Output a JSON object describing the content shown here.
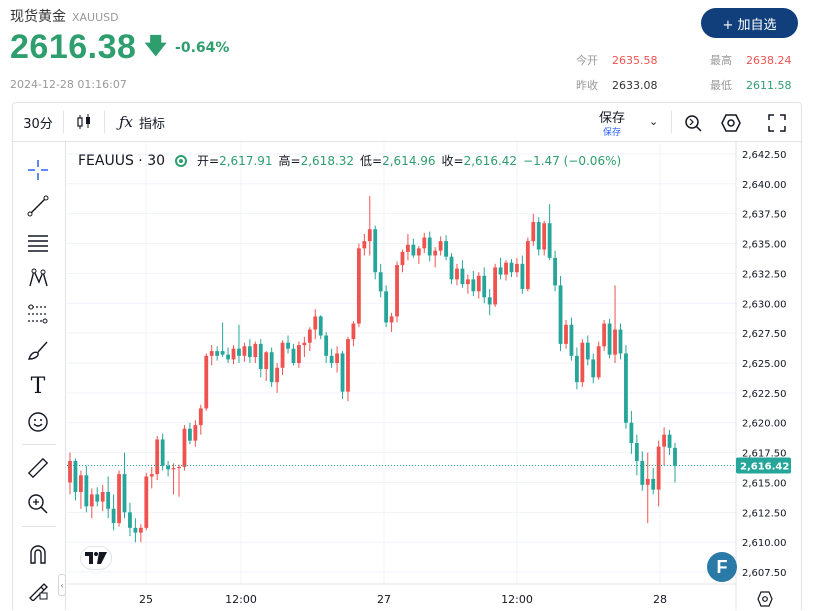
{
  "header": {
    "title": "现货黄金",
    "code": "XAUUSD",
    "price": "2616.38",
    "change_pct": "-0.64%",
    "datetime": "2024-12-28 01:16:07",
    "watch_button": "+ 加自选"
  },
  "stats": {
    "open_label": "今开",
    "open": "2635.58",
    "high_label": "最高",
    "high": "2638.24",
    "prev_label": "昨收",
    "prev": "2633.08",
    "low_label": "最低",
    "low": "2611.58"
  },
  "toolbar": {
    "interval": "30分",
    "indicators": "指标",
    "save": "保存",
    "save_sub": "保存"
  },
  "legend": {
    "symbol": "FEAUUS · 30",
    "open_label": "开=",
    "open": "2,617.91",
    "high_label": "高=",
    "high": "2,618.32",
    "low_label": "低=",
    "low": "2,614.96",
    "close_label": "收=",
    "close": "2,616.42",
    "change": "−1.47 (−0.06%)"
  },
  "colors": {
    "up": "#ef5350",
    "down": "#26a69a",
    "accent": "#103f7c",
    "price": "#2e9e6e"
  },
  "chart_data": {
    "type": "candlestick",
    "y_ticks": [
      "2,642.50",
      "2,640.00",
      "2,637.50",
      "2,635.00",
      "2,632.50",
      "2,630.00",
      "2,627.50",
      "2,625.00",
      "2,622.50",
      "2,620.00",
      "2,617.50",
      "2,615.00",
      "2,612.50",
      "2,610.00",
      "2,607.50"
    ],
    "x_ticks": [
      "25",
      "12:00",
      "27",
      "12:00",
      "28"
    ],
    "last_price": "2,616.42",
    "ylim": [
      2606.5,
      2643.5
    ],
    "candles": [
      [
        2615.0,
        2617.5,
        2614.0,
        2616.8
      ],
      [
        2616.8,
        2617.0,
        2613.5,
        2614.2
      ],
      [
        2614.2,
        2616.0,
        2612.8,
        2615.6
      ],
      [
        2615.6,
        2616.4,
        2612.5,
        2613.0
      ],
      [
        2613.0,
        2614.5,
        2612.0,
        2614.0
      ],
      [
        2614.0,
        2614.6,
        2613.0,
        2613.4
      ],
      [
        2613.4,
        2614.8,
        2612.6,
        2614.2
      ],
      [
        2614.2,
        2615.5,
        2612.0,
        2612.8
      ],
      [
        2612.8,
        2614.0,
        2611.0,
        2611.6
      ],
      [
        2611.6,
        2616.0,
        2611.3,
        2615.7
      ],
      [
        2615.7,
        2617.5,
        2612.0,
        2612.5
      ],
      [
        2612.5,
        2613.3,
        2610.5,
        2611.2
      ],
      [
        2611.2,
        2612.0,
        2610.0,
        2610.8
      ],
      [
        2610.8,
        2611.5,
        2610.0,
        2611.2
      ],
      [
        2611.2,
        2615.8,
        2611.0,
        2615.5
      ],
      [
        2615.5,
        2616.3,
        2614.5,
        2615.7
      ],
      [
        2615.7,
        2618.9,
        2615.2,
        2618.6
      ],
      [
        2618.6,
        2619.1,
        2616.0,
        2616.4
      ],
      [
        2616.4,
        2616.8,
        2615.5,
        2616.1
      ],
      [
        2616.1,
        2616.6,
        2614.0,
        2616.2
      ],
      [
        2616.2,
        2616.5,
        2613.8,
        2616.3
      ],
      [
        2616.3,
        2619.8,
        2616.0,
        2619.5
      ],
      [
        2619.5,
        2620.0,
        2618.2,
        2618.5
      ],
      [
        2618.5,
        2620.2,
        2618.0,
        2619.8
      ],
      [
        2619.8,
        2621.5,
        2619.0,
        2621.2
      ],
      [
        2621.2,
        2625.8,
        2621.0,
        2625.6
      ],
      [
        2625.6,
        2626.5,
        2624.8,
        2626.0
      ],
      [
        2626.0,
        2626.4,
        2625.2,
        2625.6
      ],
      [
        2626.0,
        2628.4,
        2625.5,
        2625.7
      ],
      [
        2625.7,
        2626.3,
        2625.0,
        2625.3
      ],
      [
        2625.3,
        2626.5,
        2624.9,
        2626.2
      ],
      [
        2626.2,
        2628.2,
        2625.0,
        2625.6
      ],
      [
        2625.6,
        2626.7,
        2625.1,
        2626.4
      ],
      [
        2626.4,
        2627.0,
        2625.0,
        2625.5
      ],
      [
        2625.5,
        2626.8,
        2625.0,
        2626.6
      ],
      [
        2626.6,
        2627.0,
        2623.8,
        2624.5
      ],
      [
        2624.5,
        2626.0,
        2623.5,
        2625.9
      ],
      [
        2625.9,
        2626.3,
        2623.0,
        2623.4
      ],
      [
        2623.4,
        2625.0,
        2622.5,
        2624.6
      ],
      [
        2624.6,
        2626.9,
        2624.0,
        2626.7
      ],
      [
        2626.7,
        2627.3,
        2625.8,
        2626.2
      ],
      [
        2626.2,
        2626.6,
        2624.8,
        2625.0
      ],
      [
        2625.0,
        2626.8,
        2624.6,
        2626.5
      ],
      [
        2626.5,
        2627.2,
        2625.5,
        2626.7
      ],
      [
        2626.7,
        2628.0,
        2626.0,
        2627.8
      ],
      [
        2627.8,
        2629.5,
        2627.0,
        2628.9
      ],
      [
        2628.9,
        2629.0,
        2627.0,
        2627.3
      ],
      [
        2627.3,
        2627.6,
        2625.0,
        2625.6
      ],
      [
        2625.6,
        2626.2,
        2624.6,
        2625.0
      ],
      [
        2625.0,
        2626.4,
        2624.2,
        2625.8
      ],
      [
        2625.8,
        2626.0,
        2622.0,
        2622.6
      ],
      [
        2622.6,
        2627.2,
        2621.8,
        2627.0
      ],
      [
        2627.0,
        2628.5,
        2626.4,
        2628.3
      ],
      [
        2628.3,
        2635.0,
        2628.0,
        2634.6
      ],
      [
        2634.6,
        2635.8,
        2634.0,
        2635.2
      ],
      [
        2635.2,
        2639.0,
        2634.0,
        2636.2
      ],
      [
        2636.2,
        2636.5,
        2632.0,
        2632.6
      ],
      [
        2632.6,
        2633.3,
        2630.5,
        2631.0
      ],
      [
        2631.0,
        2631.5,
        2628.0,
        2628.4
      ],
      [
        2628.4,
        2629.2,
        2627.6,
        2628.9
      ],
      [
        2628.9,
        2633.5,
        2628.4,
        2633.2
      ],
      [
        2633.2,
        2634.5,
        2632.6,
        2634.3
      ],
      [
        2634.3,
        2635.8,
        2633.6,
        2634.9
      ],
      [
        2634.9,
        2635.4,
        2633.8,
        2634.0
      ],
      [
        2634.0,
        2634.8,
        2633.3,
        2634.6
      ],
      [
        2634.6,
        2635.9,
        2634.2,
        2635.5
      ],
      [
        2635.5,
        2636.0,
        2633.5,
        2634.0
      ],
      [
        2634.0,
        2634.7,
        2633.0,
        2634.4
      ],
      [
        2634.4,
        2635.6,
        2634.0,
        2635.2
      ],
      [
        2635.2,
        2635.7,
        2633.6,
        2633.9
      ],
      [
        2633.9,
        2634.2,
        2631.6,
        2632.0
      ],
      [
        2632.0,
        2633.3,
        2631.5,
        2632.9
      ],
      [
        2632.9,
        2633.6,
        2631.3,
        2631.6
      ],
      [
        2631.6,
        2632.4,
        2630.8,
        2632.0
      ],
      [
        2632.0,
        2632.7,
        2630.6,
        2631.0
      ],
      [
        2631.0,
        2632.6,
        2630.4,
        2632.3
      ],
      [
        2632.3,
        2633.0,
        2630.0,
        2630.5
      ],
      [
        2630.5,
        2631.2,
        2629.0,
        2629.9
      ],
      [
        2629.9,
        2633.3,
        2629.7,
        2633.0
      ],
      [
        2633.0,
        2633.8,
        2632.0,
        2632.4
      ],
      [
        2632.4,
        2633.6,
        2631.9,
        2633.4
      ],
      [
        2633.4,
        2633.7,
        2632.2,
        2632.6
      ],
      [
        2632.6,
        2633.8,
        2632.2,
        2633.3
      ],
      [
        2633.3,
        2634.0,
        2630.8,
        2631.2
      ],
      [
        2631.2,
        2635.5,
        2631.0,
        2635.2
      ],
      [
        2635.2,
        2637.5,
        2634.8,
        2636.8
      ],
      [
        2636.8,
        2637.2,
        2634.0,
        2634.5
      ],
      [
        2634.5,
        2636.9,
        2634.0,
        2636.7
      ],
      [
        2636.7,
        2638.3,
        2633.6,
        2633.8
      ],
      [
        2633.8,
        2634.4,
        2631.0,
        2631.5
      ],
      [
        2631.5,
        2632.3,
        2626.0,
        2626.6
      ],
      [
        2626.6,
        2628.6,
        2626.2,
        2628.2
      ],
      [
        2628.2,
        2628.8,
        2625.2,
        2625.6
      ],
      [
        2625.6,
        2626.3,
        2622.8,
        2623.4
      ],
      [
        2623.4,
        2627.0,
        2623.0,
        2626.7
      ],
      [
        2626.7,
        2627.3,
        2624.8,
        2625.3
      ],
      [
        2625.3,
        2625.8,
        2623.3,
        2623.8
      ],
      [
        2623.8,
        2626.8,
        2623.6,
        2626.4
      ],
      [
        2626.4,
        2628.6,
        2626.0,
        2628.3
      ],
      [
        2628.3,
        2628.7,
        2625.4,
        2625.7
      ],
      [
        2625.7,
        2631.5,
        2625.0,
        2627.8
      ],
      [
        2627.8,
        2628.3,
        2625.3,
        2625.8
      ],
      [
        2625.8,
        2626.5,
        2619.5,
        2620.0
      ],
      [
        2620.0,
        2621.0,
        2617.4,
        2618.3
      ],
      [
        2618.3,
        2619.0,
        2615.6,
        2616.8
      ],
      [
        2616.8,
        2617.6,
        2614.3,
        2614.8
      ],
      [
        2614.8,
        2617.5,
        2611.6,
        2615.3
      ],
      [
        2615.3,
        2616.2,
        2614.0,
        2614.4
      ],
      [
        2614.4,
        2618.5,
        2613.0,
        2618.0
      ],
      [
        2618.0,
        2619.6,
        2616.4,
        2619.0
      ],
      [
        2619.0,
        2619.4,
        2617.3,
        2617.9
      ],
      [
        2617.9,
        2618.3,
        2615.0,
        2616.4
      ]
    ]
  }
}
